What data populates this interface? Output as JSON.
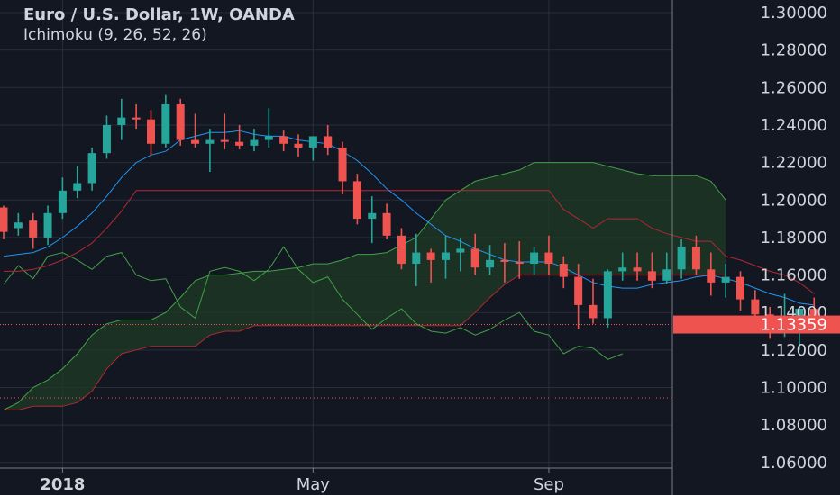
{
  "header": {
    "title": "Euro / U.S. Dollar, 1W, OANDA",
    "indicator": "Ichimoku (9, 26, 52, 26)"
  },
  "last_price": {
    "label": "1.13359",
    "value": 1.13359,
    "color": "#ef5350"
  },
  "colors": {
    "background": "#131722",
    "grid": "#2a2e39",
    "up": "#26a69a",
    "down": "#ef5350",
    "conversion": "#2196f3",
    "base": "#b22833",
    "lagging": "#43a047",
    "cloud": "#1e3b25"
  },
  "chart_data": {
    "type": "candlestick",
    "yticks": [
      "1.30000",
      "1.28000",
      "1.26000",
      "1.24000",
      "1.22000",
      "1.20000",
      "1.18000",
      "1.16000",
      "1.14000",
      "1.12000",
      "1.10000",
      "1.08000",
      "1.06000"
    ],
    "ylim": [
      1.055,
      1.305
    ],
    "x_labels": [
      "2018",
      "May",
      "Sep"
    ],
    "x_label_index": [
      4,
      21,
      37
    ],
    "dotted_level": 1.0945,
    "ohlc": [
      [
        1.196,
        1.197,
        1.179,
        1.183
      ],
      [
        1.185,
        1.193,
        1.181,
        1.188
      ],
      [
        1.189,
        1.193,
        1.174,
        1.18
      ],
      [
        1.18,
        1.197,
        1.176,
        1.193
      ],
      [
        1.193,
        1.212,
        1.19,
        1.205
      ],
      [
        1.205,
        1.218,
        1.201,
        1.209
      ],
      [
        1.209,
        1.228,
        1.205,
        1.225
      ],
      [
        1.225,
        1.245,
        1.222,
        1.24
      ],
      [
        1.24,
        1.254,
        1.232,
        1.244
      ],
      [
        1.244,
        1.251,
        1.238,
        1.243
      ],
      [
        1.243,
        1.248,
        1.224,
        1.23
      ],
      [
        1.23,
        1.256,
        1.228,
        1.251
      ],
      [
        1.251,
        1.254,
        1.229,
        1.232
      ],
      [
        1.232,
        1.246,
        1.228,
        1.23
      ],
      [
        1.23,
        1.238,
        1.215,
        1.232
      ],
      [
        1.232,
        1.246,
        1.227,
        1.231
      ],
      [
        1.231,
        1.24,
        1.227,
        1.229
      ],
      [
        1.229,
        1.238,
        1.226,
        1.232
      ],
      [
        1.232,
        1.249,
        1.228,
        1.234
      ],
      [
        1.234,
        1.237,
        1.226,
        1.23
      ],
      [
        1.23,
        1.235,
        1.223,
        1.228
      ],
      [
        1.228,
        1.232,
        1.221,
        1.234
      ],
      [
        1.234,
        1.24,
        1.224,
        1.228
      ],
      [
        1.228,
        1.231,
        1.203,
        1.21
      ],
      [
        1.21,
        1.214,
        1.187,
        1.19
      ],
      [
        1.19,
        1.202,
        1.177,
        1.193
      ],
      [
        1.193,
        1.198,
        1.179,
        1.181
      ],
      [
        1.181,
        1.185,
        1.163,
        1.166
      ],
      [
        1.166,
        1.182,
        1.154,
        1.172
      ],
      [
        1.172,
        1.174,
        1.156,
        1.168
      ],
      [
        1.168,
        1.181,
        1.158,
        1.172
      ],
      [
        1.172,
        1.18,
        1.162,
        1.174
      ],
      [
        1.174,
        1.182,
        1.16,
        1.164
      ],
      [
        1.164,
        1.176,
        1.16,
        1.168
      ],
      [
        1.168,
        1.177,
        1.156,
        1.167
      ],
      [
        1.167,
        1.178,
        1.158,
        1.166
      ],
      [
        1.166,
        1.175,
        1.16,
        1.172
      ],
      [
        1.172,
        1.181,
        1.16,
        1.166
      ],
      [
        1.166,
        1.17,
        1.153,
        1.159
      ],
      [
        1.159,
        1.166,
        1.131,
        1.144
      ],
      [
        1.144,
        1.158,
        1.134,
        1.137
      ],
      [
        1.137,
        1.163,
        1.132,
        1.162
      ],
      [
        1.162,
        1.172,
        1.157,
        1.164
      ],
      [
        1.164,
        1.172,
        1.157,
        1.162
      ],
      [
        1.162,
        1.172,
        1.153,
        1.157
      ],
      [
        1.157,
        1.172,
        1.155,
        1.163
      ],
      [
        1.163,
        1.179,
        1.158,
        1.175
      ],
      [
        1.175,
        1.181,
        1.16,
        1.163
      ],
      [
        1.163,
        1.172,
        1.149,
        1.156
      ],
      [
        1.156,
        1.166,
        1.148,
        1.159
      ],
      [
        1.159,
        1.162,
        1.141,
        1.147
      ],
      [
        1.147,
        1.152,
        1.13,
        1.139
      ],
      [
        1.139,
        1.143,
        1.126,
        1.131
      ],
      [
        1.131,
        1.15,
        1.127,
        1.137
      ],
      [
        1.137,
        1.142,
        1.12,
        1.142
      ],
      [
        1.142,
        1.148,
        1.132,
        1.134
      ]
    ],
    "tenkan": [
      1.17,
      1.171,
      1.172,
      1.175,
      1.18,
      1.186,
      1.193,
      1.202,
      1.212,
      1.22,
      1.224,
      1.226,
      1.232,
      1.234,
      1.236,
      1.236,
      1.237,
      1.235,
      1.234,
      1.234,
      1.232,
      1.231,
      1.23,
      1.226,
      1.221,
      1.214,
      1.206,
      1.2,
      1.193,
      1.187,
      1.181,
      1.178,
      1.174,
      1.171,
      1.168,
      1.167,
      1.167,
      1.167,
      1.164,
      1.16,
      1.156,
      1.154,
      1.153,
      1.153,
      1.155,
      1.156,
      1.157,
      1.159,
      1.16,
      1.158,
      1.156,
      1.153,
      1.15,
      1.148,
      1.145,
      1.144
    ],
    "kijun": [
      1.162,
      1.162,
      1.163,
      1.165,
      1.168,
      1.172,
      1.177,
      1.185,
      1.194,
      1.205,
      1.205,
      1.205,
      1.205,
      1.205,
      1.205,
      1.205,
      1.205,
      1.205,
      1.205,
      1.205,
      1.205,
      1.205,
      1.205,
      1.205,
      1.205,
      1.205,
      1.205,
      1.205,
      1.205,
      1.205,
      1.205,
      1.205,
      1.205,
      1.205,
      1.205,
      1.205,
      1.205,
      1.205,
      1.195,
      1.19,
      1.185,
      1.19,
      1.19,
      1.19,
      1.185,
      1.182,
      1.18,
      1.178,
      1.178,
      1.17,
      1.168,
      1.165,
      1.162,
      1.16,
      1.156,
      1.15
    ],
    "chikou": [
      1.155,
      1.165,
      1.158,
      1.17,
      1.172,
      1.168,
      1.163,
      1.17,
      1.172,
      1.16,
      1.157,
      1.158,
      1.143,
      1.137,
      1.162,
      1.164,
      1.162,
      1.157,
      1.163,
      1.175,
      1.163,
      1.156,
      1.159,
      1.147,
      1.139,
      1.131,
      1.137,
      1.142,
      1.134,
      1.13,
      1.129,
      1.132,
      1.128,
      1.131,
      1.136,
      1.14,
      1.13,
      1.128,
      1.118,
      1.122,
      1.121,
      1.115,
      1.118
    ],
    "senkou_a": [
      1.088,
      1.092,
      1.1,
      1.104,
      1.11,
      1.118,
      1.128,
      1.134,
      1.136,
      1.136,
      1.136,
      1.14,
      1.148,
      1.157,
      1.16,
      1.16,
      1.161,
      1.162,
      1.162,
      1.163,
      1.164,
      1.166,
      1.166,
      1.168,
      1.171,
      1.171,
      1.172,
      1.176,
      1.18,
      1.19,
      1.2,
      1.205,
      1.21,
      1.212,
      1.214,
      1.216,
      1.22,
      1.22,
      1.22,
      1.22,
      1.22,
      1.218,
      1.216,
      1.214,
      1.213,
      1.213,
      1.213,
      1.213,
      1.21,
      1.2
    ],
    "senkou_b": [
      1.088,
      1.088,
      1.09,
      1.09,
      1.09,
      1.092,
      1.098,
      1.11,
      1.118,
      1.12,
      1.122,
      1.122,
      1.122,
      1.122,
      1.128,
      1.13,
      1.13,
      1.133,
      1.133,
      1.133,
      1.133,
      1.133,
      1.133,
      1.133,
      1.133,
      1.133,
      1.133,
      1.133,
      1.133,
      1.133,
      1.133,
      1.133,
      1.14,
      1.148,
      1.155,
      1.16,
      1.16,
      1.16,
      1.16,
      1.16,
      1.16,
      1.16,
      1.16,
      1.16,
      1.16,
      1.16,
      1.16,
      1.16,
      1.16,
      1.16
    ]
  }
}
